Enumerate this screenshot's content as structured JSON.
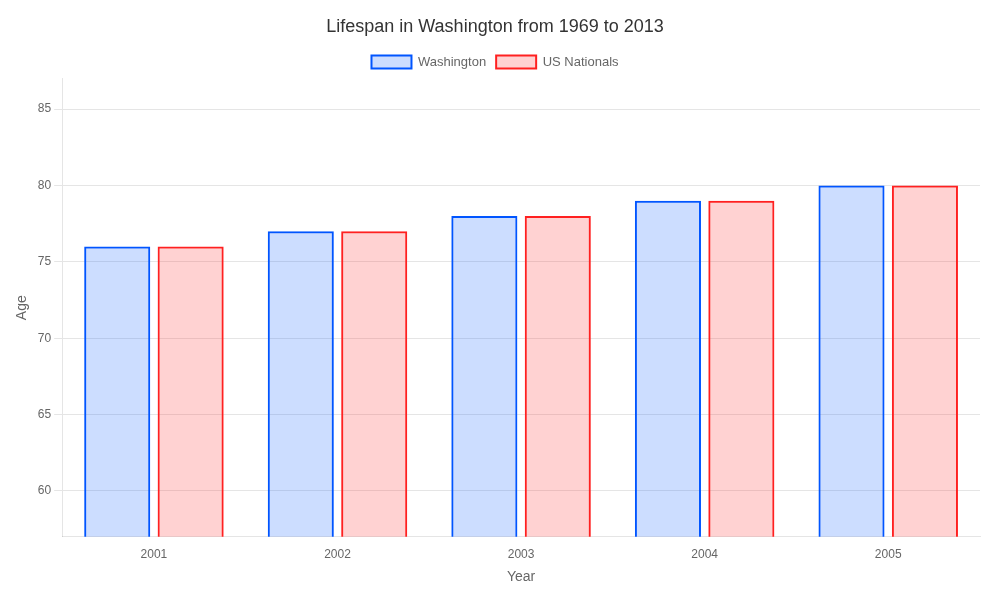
{
  "chart_data": {
    "type": "bar",
    "title": "Lifespan in Washington from 1969 to 2013",
    "x_label": "Year",
    "y_label": "Age",
    "categories": [
      "2001",
      "2002",
      "2003",
      "2004",
      "2005"
    ],
    "series": [
      {
        "name": "Washington",
        "color": "#0055ff",
        "values": [
          76.0,
          77.0,
          78.0,
          79.0,
          80.0
        ]
      },
      {
        "name": "US Nationals",
        "color": "#ff2020",
        "values": [
          76.0,
          77.0,
          78.0,
          79.0,
          80.0
        ]
      }
    ],
    "ylim": [
      57,
      87
    ],
    "yticks": [
      60,
      65,
      70,
      75,
      80,
      85
    ],
    "grid": true,
    "legend": "top"
  }
}
